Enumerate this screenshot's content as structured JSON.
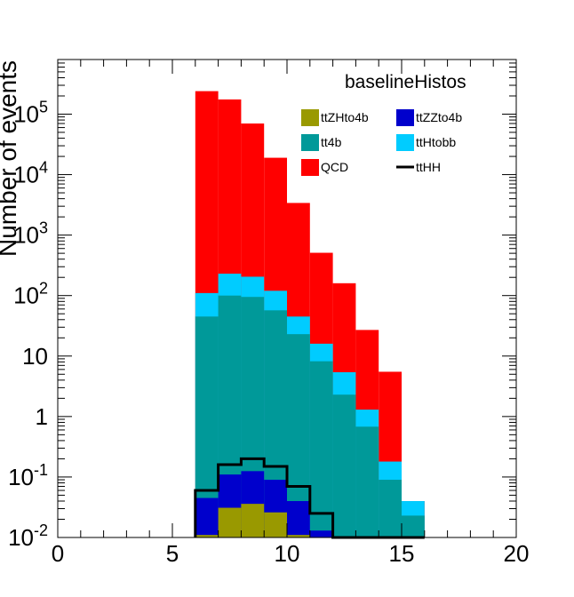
{
  "chart_data": {
    "type": "bar",
    "stacked": true,
    "title": "baselineHistos",
    "xlabel": "",
    "ylabel": "Number of events",
    "xlim": [
      0,
      20
    ],
    "ylim": [
      0.01,
      800000
    ],
    "yscale": "log",
    "bin_width": 1,
    "x_ticks": [
      "0",
      "5",
      "10",
      "15",
      "20"
    ],
    "y_ticks": [
      {
        "base": "10",
        "exp": "-2"
      },
      {
        "base": "10",
        "exp": "-1"
      },
      {
        "base": "1",
        "exp": ""
      },
      {
        "base": "10",
        "exp": ""
      },
      {
        "base": "10",
        "exp": "2"
      },
      {
        "base": "10",
        "exp": "3"
      },
      {
        "base": "10",
        "exp": "4"
      },
      {
        "base": "10",
        "exp": "5"
      }
    ],
    "bin_edges": [
      6,
      7,
      8,
      9,
      10,
      11,
      12,
      13,
      14,
      15,
      16
    ],
    "stack_series": [
      {
        "name": "ttZHto4b",
        "color": "#999900",
        "cumulative": [
          0.011,
          0.031,
          0.036,
          0.026,
          0.011,
          0.01,
          0.01,
          0.01,
          0.01,
          0.01
        ]
      },
      {
        "name": "ttZZto4b",
        "color": "#0000cc",
        "cumulative": [
          0.045,
          0.11,
          0.125,
          0.09,
          0.04,
          0.013,
          0.01,
          0.01,
          0.01,
          0.01
        ]
      },
      {
        "name": "tt4b",
        "color": "#009999",
        "cumulative": [
          45,
          100,
          95,
          57,
          23,
          8.2,
          2.3,
          0.68,
          0.09,
          0.023
        ]
      },
      {
        "name": "ttHtobb",
        "color": "#00ccff",
        "cumulative": [
          110,
          230,
          205,
          120,
          45,
          16,
          5.4,
          1.3,
          0.18,
          0.04
        ]
      },
      {
        "name": "QCD",
        "color": "#ff0000",
        "cumulative": [
          240000,
          175000,
          70000,
          19000,
          3400,
          510,
          160,
          27,
          5.5,
          0.04
        ]
      }
    ],
    "line_series": [
      {
        "name": "ttHH",
        "color": "#000000",
        "values": [
          0.06,
          0.16,
          0.2,
          0.15,
          0.07,
          0.025,
          0.01,
          0.01,
          0.01,
          0.01
        ]
      }
    ],
    "legend": {
      "placement": "top-right",
      "entries": [
        {
          "label": "ttZHto4b",
          "color": "#999900",
          "kind": "box"
        },
        {
          "label": "ttZZto4b",
          "color": "#0000cc",
          "kind": "box"
        },
        {
          "label": "tt4b",
          "color": "#009999",
          "kind": "box"
        },
        {
          "label": "ttHtobb",
          "color": "#00ccff",
          "kind": "box"
        },
        {
          "label": "QCD",
          "color": "#ff0000",
          "kind": "box"
        },
        {
          "label": "ttHH",
          "color": "#000000",
          "kind": "line"
        }
      ]
    }
  }
}
